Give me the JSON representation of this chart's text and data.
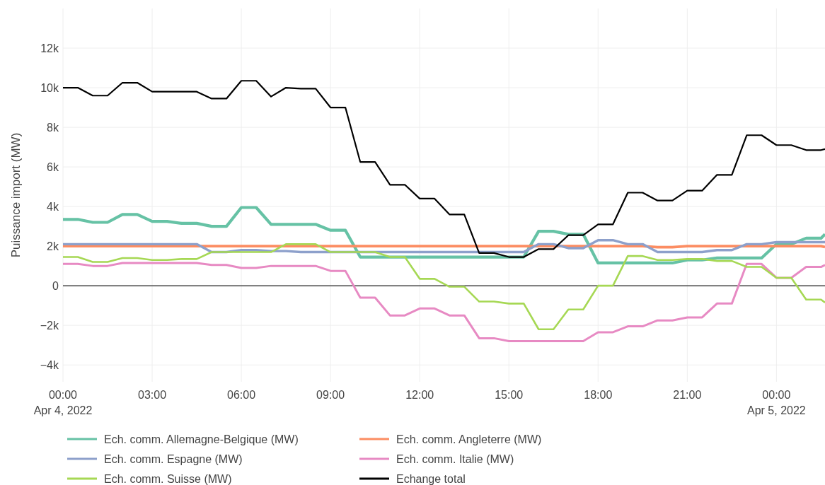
{
  "chart_data": {
    "type": "line",
    "ylabel": "Puissance import (MW)",
    "x": [
      "2022-04-04T00:00",
      "2022-04-04T00:30",
      "2022-04-04T01:00",
      "2022-04-04T01:30",
      "2022-04-04T02:00",
      "2022-04-04T02:30",
      "2022-04-04T03:00",
      "2022-04-04T03:30",
      "2022-04-04T04:00",
      "2022-04-04T04:30",
      "2022-04-04T05:00",
      "2022-04-04T05:30",
      "2022-04-04T06:00",
      "2022-04-04T06:30",
      "2022-04-04T07:00",
      "2022-04-04T07:30",
      "2022-04-04T08:00",
      "2022-04-04T08:30",
      "2022-04-04T09:00",
      "2022-04-04T09:30",
      "2022-04-04T10:00",
      "2022-04-04T10:30",
      "2022-04-04T11:00",
      "2022-04-04T11:30",
      "2022-04-04T12:00",
      "2022-04-04T12:30",
      "2022-04-04T13:00",
      "2022-04-04T13:30",
      "2022-04-04T14:00",
      "2022-04-04T14:30",
      "2022-04-04T15:00",
      "2022-04-04T15:30",
      "2022-04-04T16:00",
      "2022-04-04T16:30",
      "2022-04-04T17:00",
      "2022-04-04T17:30",
      "2022-04-04T18:00",
      "2022-04-04T18:30",
      "2022-04-04T19:00",
      "2022-04-04T19:30",
      "2022-04-04T20:00",
      "2022-04-04T20:30",
      "2022-04-04T21:00",
      "2022-04-04T21:30",
      "2022-04-04T22:00",
      "2022-04-04T22:30",
      "2022-04-04T23:00",
      "2022-04-04T23:30",
      "2022-04-05T00:00",
      "2022-04-05T00:30",
      "2022-04-05T01:00",
      "2022-04-05T01:30",
      "2022-04-05T01:38"
    ],
    "series": [
      {
        "name": "Ech. comm. Allemagne-Belgique (MW)",
        "color": "#66c2a5",
        "values": [
          3350,
          3350,
          3200,
          3200,
          3600,
          3600,
          3250,
          3250,
          3150,
          3150,
          3000,
          3000,
          3950,
          3950,
          3100,
          3100,
          3100,
          3100,
          2800,
          2800,
          1450,
          1450,
          1450,
          1450,
          1450,
          1450,
          1450,
          1450,
          1450,
          1450,
          1450,
          1450,
          2750,
          2750,
          2600,
          2600,
          1150,
          1150,
          1150,
          1150,
          1150,
          1150,
          1300,
          1300,
          1400,
          1400,
          1400,
          1400,
          2100,
          2100,
          2400,
          2400,
          2600
        ]
      },
      {
        "name": "Ech. comm. Angleterre (MW)",
        "color": "#fc8d62",
        "values": [
          2000,
          2000,
          2000,
          2000,
          2000,
          2000,
          2000,
          2000,
          2000,
          2000,
          2000,
          2000,
          2000,
          2000,
          2000,
          2000,
          2000,
          2000,
          2000,
          2000,
          2000,
          2000,
          2000,
          2000,
          2000,
          2000,
          2000,
          2000,
          2000,
          2000,
          2000,
          2000,
          2000,
          2000,
          2000,
          2000,
          2000,
          2000,
          2000,
          2000,
          1950,
          1950,
          2000,
          2000,
          2000,
          2000,
          2000,
          2000,
          2000,
          2000,
          2000,
          2000,
          1950
        ]
      },
      {
        "name": "Ech. comm. Espagne (MW)",
        "color": "#8da0cb",
        "values": [
          2100,
          2100,
          2100,
          2100,
          2100,
          2100,
          2100,
          2100,
          2100,
          2100,
          1700,
          1700,
          1800,
          1800,
          1750,
          1750,
          1700,
          1700,
          1700,
          1700,
          1700,
          1700,
          1700,
          1700,
          1700,
          1700,
          1700,
          1700,
          1700,
          1700,
          1700,
          1700,
          2100,
          2100,
          1900,
          1900,
          2300,
          2300,
          2100,
          2100,
          1700,
          1700,
          1700,
          1700,
          1800,
          1800,
          2100,
          2100,
          2200,
          2200,
          2200,
          2200,
          2200
        ]
      },
      {
        "name": "Ech. comm. Italie (MW)",
        "color": "#e78ac3",
        "values": [
          1100,
          1100,
          1000,
          1000,
          1150,
          1150,
          1150,
          1150,
          1150,
          1150,
          1050,
          1050,
          900,
          900,
          1000,
          1000,
          1000,
          1000,
          750,
          750,
          -600,
          -600,
          -1500,
          -1500,
          -1150,
          -1150,
          -1500,
          -1500,
          -2650,
          -2650,
          -2800,
          -2800,
          -2800,
          -2800,
          -2800,
          -2800,
          -2350,
          -2350,
          -2050,
          -2050,
          -1750,
          -1750,
          -1600,
          -1600,
          -900,
          -900,
          1100,
          1100,
          400,
          400,
          950,
          950,
          1050
        ]
      },
      {
        "name": "Ech. comm. Suisse (MW)",
        "color": "#a6d854",
        "values": [
          1450,
          1450,
          1200,
          1200,
          1400,
          1400,
          1300,
          1300,
          1350,
          1350,
          1700,
          1700,
          1700,
          1700,
          1700,
          2100,
          2100,
          2100,
          1700,
          1700,
          1700,
          1700,
          1450,
          1450,
          350,
          350,
          -50,
          -50,
          -800,
          -800,
          -900,
          -900,
          -2200,
          -2200,
          -1200,
          -1200,
          0,
          0,
          1500,
          1500,
          1300,
          1300,
          1350,
          1350,
          1250,
          1250,
          950,
          950,
          400,
          400,
          -700,
          -700,
          -850
        ]
      },
      {
        "name": "Echange total",
        "color": "#000000",
        "values": [
          10000,
          10000,
          9600,
          9600,
          10250,
          10250,
          9800,
          9800,
          9800,
          9800,
          9450,
          9450,
          10350,
          10350,
          9550,
          10000,
          9950,
          9950,
          9000,
          9000,
          6250,
          6250,
          5100,
          5100,
          4400,
          4400,
          3600,
          3600,
          1650,
          1650,
          1450,
          1450,
          1850,
          1850,
          2550,
          2550,
          3100,
          3100,
          4700,
          4700,
          4300,
          4300,
          4800,
          4800,
          5600,
          5600,
          7600,
          7600,
          7100,
          7100,
          6850,
          6850,
          6900
        ]
      }
    ],
    "xlim": [
      "2022-04-04T00:00",
      "2022-04-05T01:38"
    ],
    "xticks": [
      {
        "value": "2022-04-04T00:00",
        "label": "00:00\nApr 4, 2022"
      },
      {
        "value": "2022-04-04T03:00",
        "label": "03:00"
      },
      {
        "value": "2022-04-04T06:00",
        "label": "06:00"
      },
      {
        "value": "2022-04-04T09:00",
        "label": "09:00"
      },
      {
        "value": "2022-04-04T12:00",
        "label": "12:00"
      },
      {
        "value": "2022-04-04T15:00",
        "label": "15:00"
      },
      {
        "value": "2022-04-04T18:00",
        "label": "18:00"
      },
      {
        "value": "2022-04-04T21:00",
        "label": "21:00"
      },
      {
        "value": "2022-04-05T00:00",
        "label": "00:00\nApr 5, 2022"
      }
    ],
    "ylim": [
      -4850,
      14000
    ],
    "yticks": [
      {
        "value": -4000,
        "label": "−4k"
      },
      {
        "value": -2000,
        "label": "−2k"
      },
      0,
      {
        "value": 2000,
        "label": "2k"
      },
      {
        "value": 4000,
        "label": "4k"
      },
      {
        "value": 6000,
        "label": "6k"
      },
      {
        "value": 8000,
        "label": "8k"
      },
      {
        "value": 10000,
        "label": "10k"
      },
      {
        "value": 12000,
        "label": "12k"
      }
    ],
    "ref_lines": [
      {
        "axis": "y",
        "value": 0,
        "color": "#444444"
      }
    ],
    "grid": true,
    "legend": "bottom",
    "marker": "none",
    "line_style": "solid"
  }
}
